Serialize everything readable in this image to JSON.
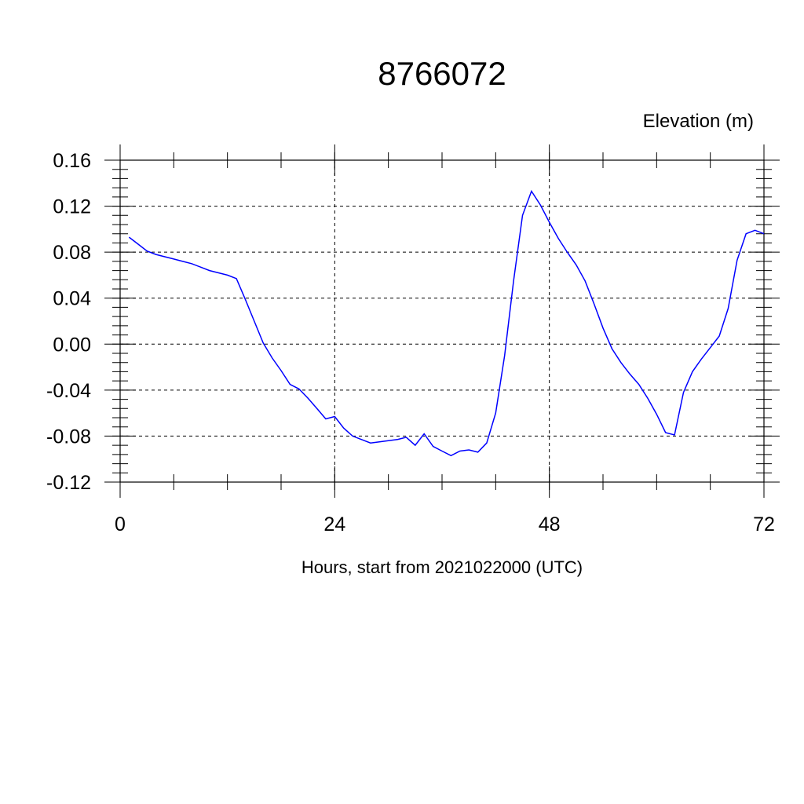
{
  "chart_data": {
    "type": "line",
    "title": "8766072",
    "ylabel": "Elevation (m)",
    "xlabel": "Hours, start from 2021022000 (UTC)",
    "xlim": [
      0,
      72
    ],
    "ylim": [
      -0.12,
      0.16
    ],
    "x_ticks": [
      0,
      24,
      48,
      72
    ],
    "x_tick_labels": [
      "0",
      "24",
      "48",
      "72"
    ],
    "y_ticks": [
      -0.12,
      -0.08,
      -0.04,
      0.0,
      0.04,
      0.08,
      0.12,
      0.16
    ],
    "y_tick_labels": [
      "-0.12",
      "-0.08",
      "-0.04",
      "0.00",
      "0.04",
      "0.08",
      "0.12",
      "0.16"
    ],
    "grid": true,
    "series": [
      {
        "color": "#0000ff",
        "x": [
          1,
          2,
          3,
          4,
          5,
          6,
          7,
          8,
          9,
          10,
          11,
          12,
          13,
          14,
          15,
          16,
          17,
          18,
          19,
          20,
          21,
          22,
          23,
          24,
          25,
          26,
          27,
          28,
          29,
          30,
          31,
          32,
          33,
          34,
          35,
          36,
          37,
          38,
          39,
          40,
          41,
          42,
          43,
          44,
          45,
          46,
          47,
          48,
          49,
          50,
          51,
          52,
          53,
          54,
          55,
          56,
          57,
          58,
          59,
          60,
          61,
          62,
          63,
          64,
          65,
          66,
          67,
          68,
          69,
          70,
          71,
          72
        ],
        "y": [
          0.093,
          0.087,
          0.081,
          0.078,
          0.076,
          0.074,
          0.072,
          0.07,
          0.067,
          0.064,
          0.062,
          0.06,
          0.057,
          0.039,
          0.02,
          0.001,
          -0.012,
          -0.023,
          -0.035,
          -0.039,
          -0.047,
          -0.056,
          -0.065,
          -0.063,
          -0.073,
          -0.08,
          -0.083,
          -0.086,
          -0.085,
          -0.084,
          -0.083,
          -0.081,
          -0.088,
          -0.078,
          -0.089,
          -0.093,
          -0.097,
          -0.093,
          -0.092,
          -0.094,
          -0.086,
          -0.06,
          -0.01,
          0.055,
          0.112,
          0.133,
          0.121,
          0.106,
          0.092,
          0.08,
          0.069,
          0.055,
          0.035,
          0.014,
          -0.004,
          -0.016,
          -0.026,
          -0.035,
          -0.047,
          -0.061,
          -0.077,
          -0.079,
          -0.042,
          -0.024,
          -0.013,
          -0.003,
          0.007,
          0.031,
          0.073,
          0.096,
          0.099,
          0.096
        ]
      }
    ]
  }
}
